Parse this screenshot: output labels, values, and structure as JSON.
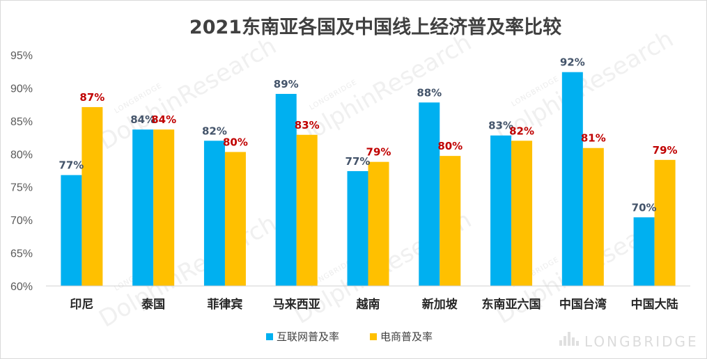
{
  "chart_data": {
    "type": "bar",
    "title": "2021东南亚各国及中国线上经济普及率比较",
    "categories": [
      "印尼",
      "泰国",
      "菲律宾",
      "马来西亚",
      "越南",
      "新加坡",
      "东南亚六国",
      "中国台湾",
      "中国大陆"
    ],
    "series": [
      {
        "name": "互联网普及率",
        "color": "#00b0f0",
        "label_color": "#44546a",
        "values": [
          76.8,
          83.7,
          82.0,
          89.1,
          77.4,
          87.8,
          82.8,
          92.4,
          70.4
        ],
        "labels": [
          "77%",
          "84%",
          "82%",
          "89%",
          "77%",
          "88%",
          "83%",
          "92%",
          "70%"
        ]
      },
      {
        "name": "电商普及率",
        "color": "#ffc000",
        "label_color": "#c00000",
        "values": [
          87.1,
          83.7,
          80.3,
          82.9,
          78.8,
          79.7,
          82.0,
          80.9,
          79.1
        ],
        "labels": [
          "87%",
          "84%",
          "80%",
          "83%",
          "79%",
          "80%",
          "82%",
          "81%",
          "79%"
        ]
      }
    ],
    "ylim": [
      60,
      95
    ],
    "yticks": [
      60,
      65,
      70,
      75,
      80,
      85,
      90,
      95
    ],
    "ytick_labels": [
      "60%",
      "65%",
      "70%",
      "75%",
      "80%",
      "85%",
      "90%",
      "95%"
    ],
    "xlabel": "",
    "ylabel": "",
    "grid": false,
    "legend_position": "bottom"
  },
  "watermark": {
    "text": "DolphinResearch",
    "small_text": "LONGBRIDGE",
    "brand": "LONGBRIDGE"
  }
}
